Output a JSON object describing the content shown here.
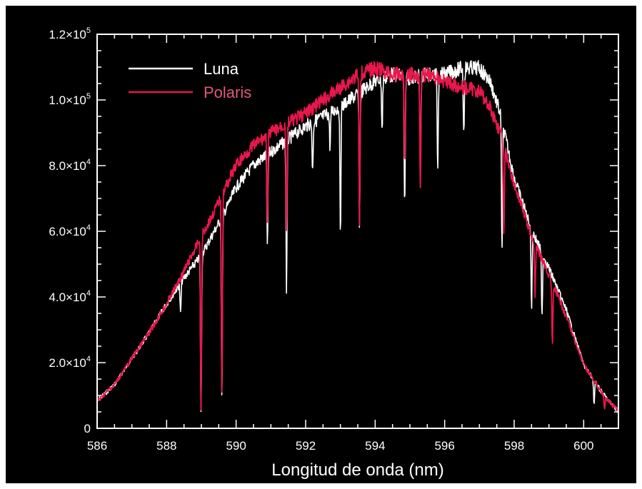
{
  "chart_data": {
    "type": "line",
    "title": "",
    "xlabel": "Longitud de onda (nm)",
    "ylabel": "",
    "xlim": [
      586,
      601
    ],
    "ylim": [
      0,
      120000
    ],
    "x_ticks": [
      586,
      588,
      590,
      592,
      594,
      596,
      598,
      600
    ],
    "x_tick_labels": [
      "586",
      "588",
      "590",
      "592",
      "594",
      "596",
      "598",
      "600"
    ],
    "y_ticks": [
      {
        "value": 0,
        "mantissa": "0",
        "exp": ""
      },
      {
        "value": 20000,
        "mantissa": "2.0×10",
        "exp": "4"
      },
      {
        "value": 40000,
        "mantissa": "4.0×10",
        "exp": "4"
      },
      {
        "value": 60000,
        "mantissa": "6.0×10",
        "exp": "4"
      },
      {
        "value": 80000,
        "mantissa": "8.0×10",
        "exp": "4"
      },
      {
        "value": 100000,
        "mantissa": "1.0×10",
        "exp": "5"
      },
      {
        "value": 120000,
        "mantissa": "1.2×10",
        "exp": "5"
      }
    ],
    "grid": false,
    "legend_position": "top-left",
    "background": "#000000",
    "axis_color": "#ffffff",
    "series": [
      {
        "name": "Luna",
        "color": "#ffffff",
        "points": [
          [
            586.0,
            9000
          ],
          [
            586.5,
            14000
          ],
          [
            587.0,
            22000
          ],
          [
            587.5,
            30000
          ],
          [
            588.0,
            39000
          ],
          [
            588.5,
            47000
          ],
          [
            589.0,
            54000
          ],
          [
            589.3,
            60000
          ],
          [
            589.6,
            66000
          ],
          [
            590.0,
            75000
          ],
          [
            590.5,
            82000
          ],
          [
            591.0,
            86000
          ],
          [
            591.5,
            90000
          ],
          [
            592.0,
            94000
          ],
          [
            592.5,
            97000
          ],
          [
            593.0,
            100000
          ],
          [
            593.5,
            104000
          ],
          [
            594.0,
            108000
          ],
          [
            594.5,
            110000
          ],
          [
            595.0,
            109000
          ],
          [
            595.5,
            110000
          ],
          [
            596.0,
            110000
          ],
          [
            596.5,
            112000
          ],
          [
            597.0,
            112000
          ],
          [
            597.3,
            108000
          ],
          [
            597.6,
            98000
          ],
          [
            597.8,
            88000
          ],
          [
            598.0,
            78000
          ],
          [
            598.5,
            62000
          ],
          [
            599.0,
            50000
          ],
          [
            599.5,
            37000
          ],
          [
            600.0,
            20000
          ],
          [
            600.5,
            12000
          ],
          [
            600.8,
            8000
          ],
          [
            601.0,
            6000
          ]
        ],
        "absorption_lines": [
          {
            "x": 588.4,
            "y": 36000
          },
          {
            "x": 588.99,
            "y": 6000
          },
          {
            "x": 589.59,
            "y": 10000
          },
          {
            "x": 590.9,
            "y": 58000
          },
          {
            "x": 591.45,
            "y": 44000
          },
          {
            "x": 592.2,
            "y": 80000
          },
          {
            "x": 592.7,
            "y": 88000
          },
          {
            "x": 593.0,
            "y": 62000
          },
          {
            "x": 593.55,
            "y": 65000
          },
          {
            "x": 594.2,
            "y": 93000
          },
          {
            "x": 594.85,
            "y": 68000
          },
          {
            "x": 595.3,
            "y": 80000
          },
          {
            "x": 595.8,
            "y": 82000
          },
          {
            "x": 596.55,
            "y": 92000
          },
          {
            "x": 597.65,
            "y": 56000
          },
          {
            "x": 598.5,
            "y": 38000
          },
          {
            "x": 598.8,
            "y": 35000
          },
          {
            "x": 600.3,
            "y": 8000
          }
        ]
      },
      {
        "name": "Polaris",
        "color": "#e8174c",
        "points": [
          [
            586.0,
            9000
          ],
          [
            586.5,
            14000
          ],
          [
            587.0,
            22000
          ],
          [
            587.5,
            30000
          ],
          [
            588.0,
            39000
          ],
          [
            588.5,
            49000
          ],
          [
            589.0,
            60000
          ],
          [
            589.3,
            66000
          ],
          [
            589.6,
            73000
          ],
          [
            590.0,
            82000
          ],
          [
            590.5,
            88000
          ],
          [
            591.0,
            92000
          ],
          [
            591.5,
            95000
          ],
          [
            592.0,
            98000
          ],
          [
            592.5,
            102000
          ],
          [
            593.0,
            106000
          ],
          [
            593.5,
            110000
          ],
          [
            594.0,
            112000
          ],
          [
            594.5,
            110000
          ],
          [
            595.0,
            110000
          ],
          [
            595.5,
            110000
          ],
          [
            596.0,
            108000
          ],
          [
            596.5,
            106000
          ],
          [
            597.0,
            105000
          ],
          [
            597.3,
            100000
          ],
          [
            597.6,
            92000
          ],
          [
            597.8,
            84000
          ],
          [
            598.0,
            76000
          ],
          [
            598.5,
            60000
          ],
          [
            599.0,
            48000
          ],
          [
            599.5,
            35000
          ],
          [
            600.0,
            20000
          ],
          [
            600.5,
            12000
          ],
          [
            600.8,
            8000
          ],
          [
            601.0,
            6000
          ]
        ],
        "absorption_lines": [
          {
            "x": 588.99,
            "y": 8000
          },
          {
            "x": 589.59,
            "y": 13000
          },
          {
            "x": 590.9,
            "y": 64000
          },
          {
            "x": 591.45,
            "y": 60000
          },
          {
            "x": 593.55,
            "y": 63000
          },
          {
            "x": 594.85,
            "y": 82000
          },
          {
            "x": 595.3,
            "y": 75000
          },
          {
            "x": 597.7,
            "y": 60000
          },
          {
            "x": 598.6,
            "y": 42000
          },
          {
            "x": 599.1,
            "y": 26000
          },
          {
            "x": 600.6,
            "y": 6000
          }
        ]
      }
    ]
  }
}
